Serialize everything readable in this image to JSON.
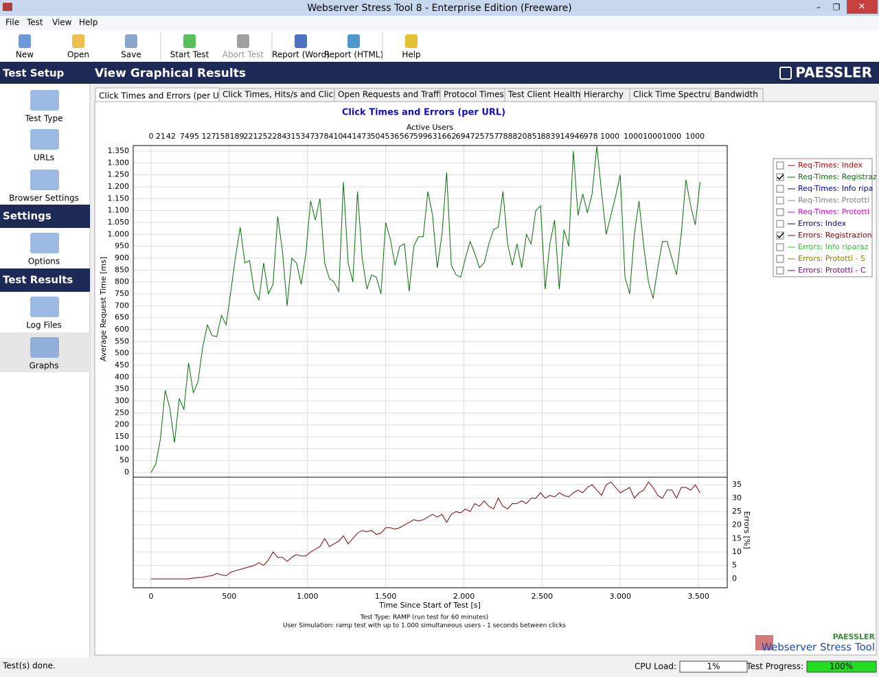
{
  "window": {
    "title": "Webserver Stress Tool 8 - Enterprise Edition (Freeware)"
  },
  "menu": [
    "File",
    "Test",
    "View",
    "Help"
  ],
  "toolbar": [
    "New",
    "Open",
    "Save",
    "Start Test",
    "Abort Test",
    "Report (Word)",
    "Report (HTML)",
    "Help"
  ],
  "sidebar": {
    "sections": [
      {
        "title": "Test Setup",
        "items": [
          "Test Type",
          "URLs",
          "Browser Settings"
        ]
      },
      {
        "title": "Settings",
        "items": [
          "Options"
        ]
      },
      {
        "title": "Test Results",
        "items": [
          "Log Files",
          "Graphs"
        ]
      }
    ]
  },
  "header": {
    "title": "View Graphical Results",
    "brand": "PAESSLER"
  },
  "tabs": [
    "Click Times and Errors (per URL)",
    "Click Times, Hits/s and Clicks/s",
    "Open Requests and Traffic",
    "Protocol Times",
    "Test Client Health",
    "Hierarchy",
    "Click Time Spectrum",
    "Bandwidth"
  ],
  "chart_data": {
    "type": "line",
    "title": "Click Times and Errors (per URL)",
    "x2label": "Active Users",
    "ylabel": "Average Request Time [ms]",
    "y2label": "Errors [%]",
    "xlabel": "Time Since Start of Test [s]",
    "notes": [
      "Test Type: RAMP (run test for 60 minutes)",
      "User Simulation: ramp test with up to 1.000 simultaneous users - 1 seconds between clicks"
    ],
    "grid": true,
    "xlim": [
      -114,
      3684
    ],
    "xticks": [
      0,
      500,
      {
        "value": 1000,
        "label": "1.000"
      },
      {
        "value": 1500,
        "label": "1.500"
      },
      {
        "value": 2000,
        "label": "2.000"
      },
      {
        "value": 2500,
        "label": "2.500"
      },
      {
        "value": 3000,
        "label": "3.000"
      },
      {
        "value": 3500,
        "label": "3.500"
      }
    ],
    "x2ticks": [
      0,
      {
        "value": 61,
        "label": "21"
      },
      {
        "value": 127,
        "label": "42"
      },
      {
        "value": 215,
        "label": "74"
      },
      {
        "value": 277,
        "label": "95"
      },
      {
        "value": 369,
        "label": "127"
      },
      {
        "value": 457,
        "label": "158"
      },
      {
        "value": 549,
        "label": "189"
      },
      {
        "value": 637,
        "label": "221"
      },
      {
        "value": 729,
        "label": "252"
      },
      {
        "value": 821,
        "label": "284"
      },
      {
        "value": 909,
        "label": "315"
      },
      {
        "value": 1001,
        "label": "347"
      },
      {
        "value": 1089,
        "label": "378"
      },
      {
        "value": 1181,
        "label": "410"
      },
      {
        "value": 1269,
        "label": "441"
      },
      {
        "value": 1361,
        "label": "473"
      },
      {
        "value": 1449,
        "label": "504"
      },
      {
        "value": 1541,
        "label": "536"
      },
      {
        "value": 1634,
        "label": "567"
      },
      {
        "value": 1722,
        "label": "599"
      },
      {
        "value": 1814,
        "label": "631"
      },
      {
        "value": 1906,
        "label": "662"
      },
      {
        "value": 1994,
        "label": "694"
      },
      {
        "value": 2086,
        "label": "725"
      },
      {
        "value": 2178,
        "label": "757"
      },
      {
        "value": 2266,
        "label": "788"
      },
      {
        "value": 2358,
        "label": "820"
      },
      {
        "value": 2451,
        "label": "851"
      },
      {
        "value": 2538,
        "label": "883"
      },
      {
        "value": 2631,
        "label": "914"
      },
      {
        "value": 2723,
        "label": "946"
      },
      {
        "value": 2811,
        "label": "978"
      },
      {
        "value": 2934,
        "label": "1000"
      },
      {
        "value": 3083,
        "label": "1000"
      },
      {
        "value": 3206,
        "label": "1000"
      },
      {
        "value": 3329,
        "label": "1000"
      },
      {
        "value": 3478,
        "label": "1000"
      }
    ],
    "ylim": [
      -20,
      1373
    ],
    "yticks": [
      0,
      50,
      100,
      150,
      200,
      250,
      300,
      350,
      400,
      450,
      500,
      550,
      600,
      650,
      700,
      750,
      800,
      850,
      900,
      950,
      {
        "value": 1000,
        "label": "1.000"
      },
      {
        "value": 1050,
        "label": "1.050"
      },
      {
        "value": 1100,
        "label": "1.100"
      },
      {
        "value": 1150,
        "label": "1.150"
      },
      {
        "value": 1200,
        "label": "1.200"
      },
      {
        "value": 1250,
        "label": "1.250"
      },
      {
        "value": 1300,
        "label": "1.300"
      },
      {
        "value": 1350,
        "label": "1.350"
      }
    ],
    "y2lim": [
      -3.3,
      37.8
    ],
    "y2ticks": [
      0,
      5,
      10,
      15,
      20,
      25,
      30,
      35
    ],
    "x": [
      0,
      30,
      60,
      90,
      120,
      150,
      180,
      210,
      240,
      270,
      300,
      330,
      360,
      390,
      420,
      450,
      480,
      510,
      540,
      570,
      600,
      630,
      660,
      690,
      720,
      750,
      780,
      810,
      840,
      870,
      900,
      930,
      960,
      990,
      1020,
      1050,
      1080,
      1110,
      1140,
      1170,
      1200,
      1230,
      1260,
      1290,
      1320,
      1350,
      1380,
      1410,
      1440,
      1470,
      1500,
      1530,
      1560,
      1590,
      1620,
      1650,
      1680,
      1710,
      1740,
      1770,
      1800,
      1830,
      1860,
      1890,
      1920,
      1950,
      1980,
      2010,
      2040,
      2070,
      2100,
      2130,
      2160,
      2190,
      2220,
      2250,
      2280,
      2310,
      2340,
      2370,
      2400,
      2430,
      2460,
      2490,
      2520,
      2550,
      2580,
      2610,
      2640,
      2670,
      2700,
      2730,
      2760,
      2790,
      2820,
      2850,
      2880,
      2910,
      2940,
      2970,
      3000,
      3030,
      3060,
      3090,
      3120,
      3150,
      3180,
      3210,
      3240,
      3270,
      3300,
      3330,
      3360,
      3390,
      3420,
      3450,
      3480,
      3510
    ],
    "series": [
      {
        "name": "Req-Times: Index",
        "color": "#c00000",
        "checked": false
      },
      {
        "name": "Req-Times: Registraz",
        "color": "#007000",
        "checked": true,
        "values": [
          0,
          35,
          140,
          345,
          270,
          125,
          310,
          265,
          460,
          335,
          380,
          525,
          620,
          575,
          570,
          660,
          620,
          760,
          905,
          1030,
          880,
          890,
          760,
          725,
          880,
          750,
          790,
          1075,
          930,
          700,
          900,
          880,
          790,
          920,
          1140,
          1060,
          1150,
          880,
          815,
          800,
          760,
          1220,
          880,
          800,
          1180,
          900,
          770,
          830,
          820,
          750,
          1050,
          980,
          870,
          950,
          960,
          760,
          950,
          990,
          990,
          1180,
          1080,
          860,
          1000,
          1260,
          870,
          830,
          820,
          900,
          970,
          920,
          860,
          880,
          960,
          1020,
          1030,
          1180,
          960,
          870,
          960,
          860,
          1000,
          960,
          1100,
          1120,
          770,
          960,
          1060,
          770,
          1020,
          950,
          1350,
          1080,
          1170,
          1090,
          1170,
          1370,
          1180,
          1000,
          1080,
          1160,
          1250,
          820,
          750,
          1000,
          1140,
          950,
          800,
          730,
          860,
          970,
          970,
          900,
          830,
          1000,
          1230,
          1120,
          1040,
          1220
        ]
      },
      {
        "name": "Req-Times: Info ripa",
        "color": "#0000b0",
        "checked": false
      },
      {
        "name": "Req-Times: Prototti",
        "color": "#808080",
        "checked": false
      },
      {
        "name": "Req-Times: Prototti",
        "color": "#e000e0",
        "checked": false
      },
      {
        "name": "Errors: Index",
        "color": "#000080",
        "checked": false
      },
      {
        "name": "Errors: Registrazion",
        "color": "#800000",
        "checked": true,
        "axis": "y2",
        "values": [
          0,
          0,
          0,
          0,
          0,
          0,
          0,
          0,
          0,
          0.3,
          0.5,
          0.6,
          1,
          1.2,
          2,
          1.5,
          1.2,
          2.5,
          3,
          3.5,
          4,
          4.5,
          5,
          6,
          5,
          7,
          10,
          8,
          8,
          6.5,
          8,
          9,
          8.5,
          8.5,
          10,
          11,
          12,
          15,
          12,
          13,
          14,
          16,
          13,
          15,
          17,
          18,
          17.5,
          18,
          16.5,
          17,
          19,
          19,
          18.5,
          19,
          20,
          21,
          22,
          21.5,
          22,
          23,
          24,
          23,
          24,
          21,
          24,
          25,
          24.5,
          26,
          25,
          28,
          27,
          29,
          27,
          26,
          30,
          27,
          26,
          28,
          28,
          29,
          28,
          30,
          30,
          32,
          30,
          31,
          30.5,
          32,
          31,
          30.5,
          32,
          33,
          32,
          34,
          35,
          33,
          31,
          35,
          36,
          34,
          32,
          33,
          34,
          30,
          32,
          33,
          36,
          34,
          31,
          30,
          33,
          33,
          30,
          34,
          34,
          33,
          35,
          32
        ]
      },
      {
        "name": "Errors: Info riparaz",
        "color": "#20d020",
        "checked": false
      },
      {
        "name": "Errors: Prototti - S",
        "color": "#808000",
        "checked": false
      },
      {
        "name": "Errors: Prototti - C",
        "color": "#800080",
        "checked": false
      }
    ]
  },
  "branding": {
    "small": "PAESSLER",
    "product": "Webserver Stress Tool"
  },
  "status": {
    "message": "Test(s) done.",
    "cpu_label": "CPU Load:",
    "cpu_value": "1%",
    "progress_label": "Test Progress:",
    "progress_value": "100%"
  }
}
